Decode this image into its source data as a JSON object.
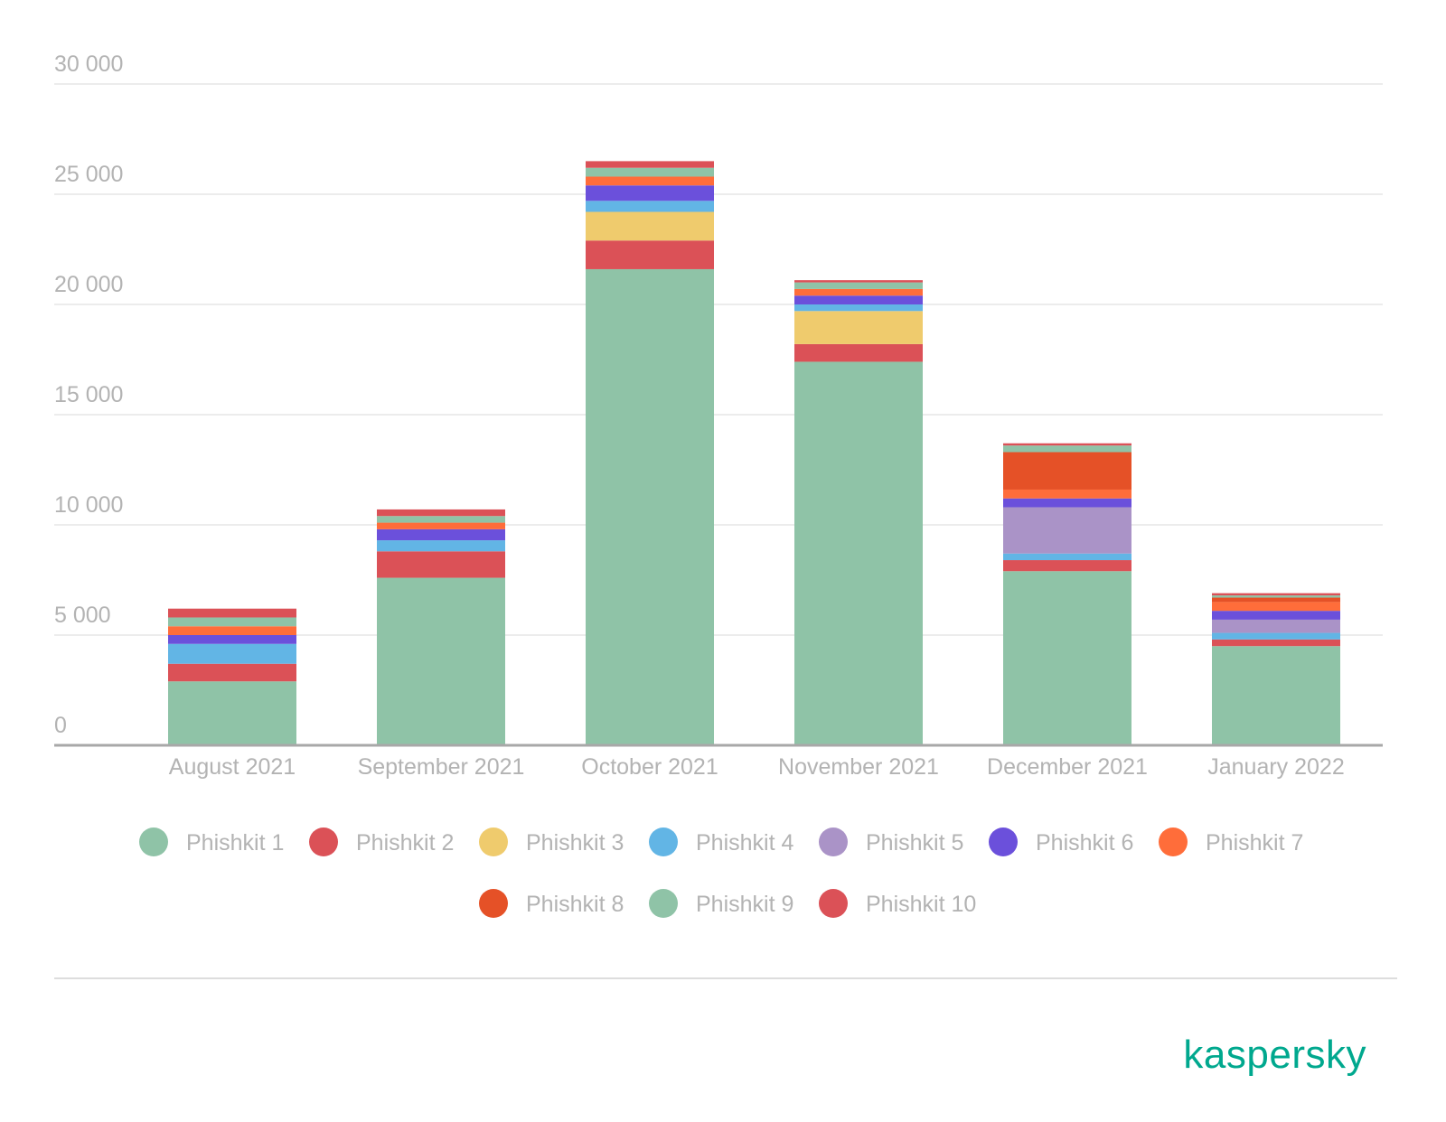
{
  "chart_data": {
    "type": "bar",
    "stacked": true,
    "title": "",
    "xlabel": "",
    "ylabel": "",
    "ylim": [
      0,
      30000
    ],
    "yticks": [
      0,
      5000,
      10000,
      15000,
      20000,
      25000,
      30000
    ],
    "ytick_labels": [
      "0",
      "5 000",
      "10 000",
      "15 000",
      "20 000",
      "25 000",
      "30 000"
    ],
    "grid": true,
    "legend_position": "bottom",
    "categories": [
      "August 2021",
      "September 2021",
      "October 2021",
      "November 2021",
      "December 2021",
      "January 2022"
    ],
    "series": [
      {
        "name": "Phishkit 1",
        "color": "#8fc3a7",
        "values": [
          2900,
          7600,
          21600,
          17400,
          7900,
          4500
        ]
      },
      {
        "name": "Phishkit 2",
        "color": "#db5157",
        "values": [
          800,
          1200,
          1300,
          800,
          500,
          300
        ]
      },
      {
        "name": "Phishkit 3",
        "color": "#efcb6d",
        "values": [
          0,
          0,
          1300,
          1500,
          0,
          0
        ]
      },
      {
        "name": "Phishkit 4",
        "color": "#62b5e5",
        "values": [
          900,
          500,
          500,
          300,
          300,
          300
        ]
      },
      {
        "name": "Phishkit 5",
        "color": "#aa93c7",
        "values": [
          0,
          0,
          0,
          0,
          2100,
          600
        ]
      },
      {
        "name": "Phishkit 6",
        "color": "#6b50db",
        "values": [
          400,
          500,
          700,
          400,
          400,
          400
        ]
      },
      {
        "name": "Phishkit 7",
        "color": "#ff6d3a",
        "values": [
          400,
          300,
          400,
          300,
          400,
          400
        ]
      },
      {
        "name": "Phishkit 8",
        "color": "#e55127",
        "values": [
          0,
          0,
          0,
          0,
          1700,
          200
        ]
      },
      {
        "name": "Phishkit 9",
        "color": "#8fc3a7",
        "values": [
          400,
          300,
          400,
          300,
          300,
          100
        ]
      },
      {
        "name": "Phishkit 10",
        "color": "#db5157",
        "values": [
          400,
          300,
          300,
          100,
          100,
          100
        ]
      }
    ]
  },
  "branding": {
    "logo_text": "kaspersky",
    "logo_color": "#00a88e"
  }
}
